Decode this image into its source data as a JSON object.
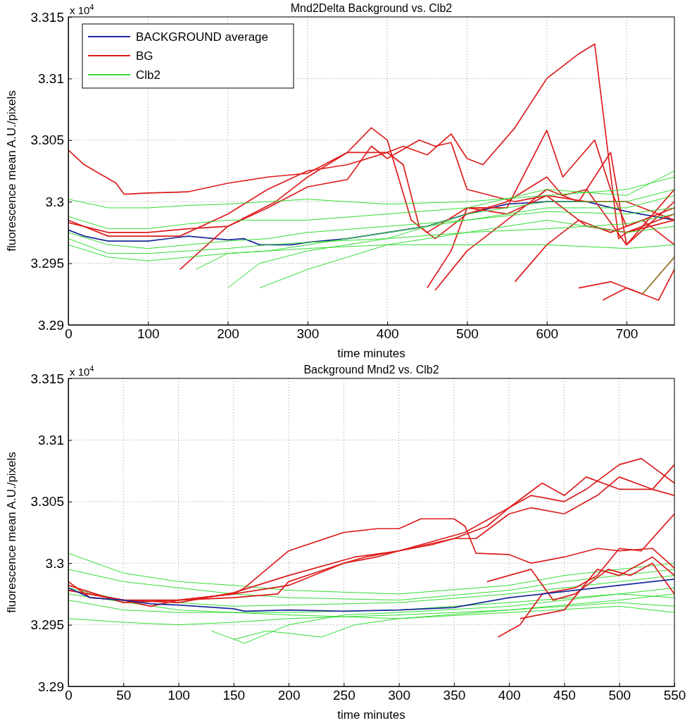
{
  "chart_data": [
    {
      "type": "line",
      "title": "Mnd2Delta Background vs. Clb2",
      "xlabel": "time minutes",
      "ylabel": "fluorescence mean A.U./pixels",
      "annotations": [
        "x 10$^{4}$"
      ],
      "xlim": [
        0,
        760
      ],
      "xticks": [
        0,
        100,
        200,
        300,
        400,
        500,
        600,
        700
      ],
      "ylim": [
        3.29,
        3.315
      ],
      "yticks": [
        3.29,
        3.295,
        3.3,
        3.305,
        3.31,
        3.315
      ],
      "grid": true,
      "legend": "top left",
      "marker": "none",
      "line_style": "solid",
      "series": [
        {
          "name": "BACKGROUND average",
          "color": "#1a2a9a",
          "x": [
            0,
            20,
            50,
            100,
            150,
            200,
            220,
            240,
            280,
            300,
            350,
            400,
            450,
            500,
            550,
            600,
            650,
            700,
            760
          ],
          "values": [
            3.2977,
            3.2972,
            3.2968,
            3.2968,
            3.2972,
            3.2969,
            3.297,
            3.2965,
            3.2965,
            3.2967,
            3.297,
            3.2975,
            3.298,
            3.299,
            3.2998,
            3.3,
            3.3,
            3.2992,
            3.2985
          ]
        },
        {
          "name": "BG",
          "color": "#dd1c1c",
          "x": [
            0,
            20,
            60,
            70,
            100,
            150,
            200,
            250,
            300,
            350,
            400,
            420,
            450,
            480,
            500,
            520,
            560,
            600,
            640,
            660,
            690,
            700,
            760
          ],
          "values": [
            3.3042,
            3.303,
            3.3015,
            3.3006,
            3.3007,
            3.3008,
            3.3015,
            3.302,
            3.3023,
            3.304,
            3.304,
            3.3045,
            3.3038,
            3.3055,
            3.3035,
            3.303,
            3.306,
            3.31,
            3.312,
            3.3128,
            3.297,
            3.2975,
            3.299
          ]
        },
        {
          "color": "#dd1c1c",
          "x": [
            0,
            50,
            100,
            150,
            200,
            260,
            300,
            350,
            380,
            400,
            430,
            450,
            500,
            550,
            600,
            650,
            700,
            760
          ],
          "values": [
            3.2983,
            3.2975,
            3.2975,
            3.2978,
            3.298,
            3.3,
            3.302,
            3.304,
            3.306,
            3.305,
            3.2985,
            3.2975,
            3.2995,
            3.299,
            3.3005,
            3.298,
            3.2975,
            3.2985
          ]
        },
        {
          "color": "#dd1c1c",
          "x": [
            0,
            50,
            100,
            140,
            200,
            250,
            300,
            350,
            400,
            420,
            440,
            460,
            500,
            550,
            600,
            620,
            650,
            700,
            760
          ],
          "values": [
            3.2985,
            3.2972,
            3.2972,
            3.2972,
            3.299,
            3.301,
            3.3025,
            3.303,
            3.304,
            3.303,
            3.298,
            3.297,
            3.299,
            3.3,
            3.302,
            3.3005,
            3.301,
            3.2965,
            3.3
          ]
        },
        {
          "color": "#dd1c1c",
          "x": [
            140,
            200,
            250,
            300,
            350,
            380,
            400,
            440,
            460,
            480,
            500,
            560,
            600,
            650,
            700,
            760
          ],
          "values": [
            3.2945,
            3.298,
            3.2995,
            3.3012,
            3.3018,
            3.3045,
            3.3035,
            3.305,
            3.3045,
            3.3048,
            3.301,
            3.3,
            3.3005,
            3.3,
            3.3,
            3.2985
          ]
        },
        {
          "color": "#dd1c1c",
          "x": [
            450,
            480,
            500,
            550,
            600,
            620,
            660,
            680,
            700,
            760
          ],
          "values": [
            3.293,
            3.296,
            3.2995,
            3.2995,
            3.3058,
            3.302,
            3.305,
            3.301,
            3.298,
            3.2995
          ]
        },
        {
          "color": "#dd1c1c",
          "x": [
            460,
            500,
            550,
            600,
            640,
            680,
            700,
            760
          ],
          "values": [
            3.2928,
            3.296,
            3.2985,
            3.301,
            3.3,
            3.304,
            3.2965,
            3.301
          ]
        },
        {
          "color": "#dd1c1c",
          "x": [
            560,
            600,
            640,
            680,
            720,
            760
          ],
          "values": [
            3.2935,
            3.2965,
            3.2985,
            3.2975,
            3.2985,
            3.2965
          ]
        },
        {
          "color": "#dd1c1c",
          "x": [
            640,
            680,
            720,
            760
          ],
          "values": [
            3.293,
            3.2935,
            3.2925,
            3.2955
          ]
        },
        {
          "color": "#dd1c1c",
          "x": [
            670,
            700,
            740,
            760
          ],
          "values": [
            3.292,
            3.293,
            3.292,
            3.2945
          ]
        },
        {
          "name": "Clb2",
          "color": "#33dd33",
          "x": [
            0,
            50,
            100,
            150,
            200,
            250,
            300,
            400,
            500,
            600,
            700,
            760
          ],
          "values": [
            3.3002,
            3.2995,
            3.2995,
            3.2997,
            3.2998,
            3.3,
            3.3002,
            3.2998,
            3.3,
            3.3005,
            3.301,
            3.302
          ]
        },
        {
          "color": "#33dd33",
          "x": [
            0,
            50,
            100,
            150,
            200,
            250,
            300,
            400,
            500,
            600,
            700,
            760
          ],
          "values": [
            3.2975,
            3.2965,
            3.2962,
            3.2965,
            3.2968,
            3.297,
            3.2975,
            3.298,
            3.2985,
            3.2995,
            3.2995,
            3.3005
          ]
        },
        {
          "color": "#33dd33",
          "x": [
            0,
            50,
            100,
            150,
            200,
            250,
            300,
            400,
            500,
            600,
            700,
            760
          ],
          "values": [
            3.297,
            3.2958,
            3.2958,
            3.296,
            3.2962,
            3.2965,
            3.2967,
            3.297,
            3.2975,
            3.2978,
            3.2982,
            3.299
          ]
        },
        {
          "color": "#33dd33",
          "x": [
            0,
            50,
            100,
            150,
            200,
            250,
            300,
            400,
            500,
            600,
            700,
            760
          ],
          "values": [
            3.2965,
            3.2955,
            3.2952,
            3.2955,
            3.2958,
            3.296,
            3.2962,
            3.2965,
            3.2965,
            3.2965,
            3.2962,
            3.2965
          ]
        },
        {
          "color": "#33dd33",
          "x": [
            160,
            200,
            250,
            300,
            400,
            500,
            600,
            700,
            760
          ],
          "values": [
            3.2945,
            3.2958,
            3.296,
            3.2965,
            3.2975,
            3.2985,
            3.2992,
            3.299,
            3.2995
          ]
        },
        {
          "color": "#33dd33",
          "x": [
            200,
            240,
            300,
            400,
            500,
            600,
            700,
            760
          ],
          "values": [
            3.293,
            3.295,
            3.296,
            3.297,
            3.299,
            3.3,
            3.3,
            3.301
          ]
        },
        {
          "color": "#33dd33",
          "x": [
            240,
            300,
            350,
            400,
            500,
            600,
            700,
            760
          ],
          "values": [
            3.293,
            3.2945,
            3.2955,
            3.2965,
            3.2975,
            3.2985,
            3.2975,
            3.298
          ]
        },
        {
          "color": "#33dd33",
          "x": [
            0,
            50,
            100,
            150,
            200,
            250,
            300,
            400,
            500,
            600,
            700,
            760
          ],
          "values": [
            3.2988,
            3.2978,
            3.2978,
            3.2982,
            3.2985,
            3.2985,
            3.2985,
            3.299,
            3.2995,
            3.301,
            3.3005,
            3.3025
          ]
        },
        {
          "color": "#33dd33",
          "x": [
            720,
            740,
            760
          ],
          "values": [
            3.2925,
            3.294,
            3.2955
          ]
        }
      ]
    },
    {
      "type": "line",
      "title": "Background Mnd2 vs. Clb2",
      "xlabel": "time minutes",
      "ylabel": "fluorescence mean A.U./pixels",
      "annotations": [
        "x 10$^{4}$"
      ],
      "xlim": [
        0,
        550
      ],
      "xticks": [
        0,
        50,
        100,
        150,
        200,
        250,
        300,
        350,
        400,
        450,
        500,
        550
      ],
      "ylim": [
        3.29,
        3.315
      ],
      "yticks": [
        3.29,
        3.295,
        3.3,
        3.305,
        3.31,
        3.315
      ],
      "grid": true,
      "marker": "none",
      "line_style": "solid",
      "series": [
        {
          "color": "#33dd33",
          "x": [
            0,
            50,
            100,
            150,
            200,
            300,
            400,
            450,
            500,
            550
          ],
          "values": [
            3.3008,
            3.2992,
            3.2985,
            3.2982,
            3.2978,
            3.2975,
            3.2982,
            3.299,
            3.2995,
            3.3
          ]
        },
        {
          "color": "#33dd33",
          "x": [
            0,
            50,
            100,
            150,
            200,
            300,
            400,
            450,
            500,
            550
          ],
          "values": [
            3.2995,
            3.2985,
            3.298,
            3.2975,
            3.2972,
            3.297,
            3.2978,
            3.2985,
            3.299,
            3.2995
          ]
        },
        {
          "color": "#33dd33",
          "x": [
            0,
            50,
            100,
            150,
            200,
            300,
            400,
            500,
            550
          ],
          "values": [
            3.298,
            3.297,
            3.2968,
            3.2965,
            3.2966,
            3.2968,
            3.2975,
            3.2985,
            3.299
          ]
        },
        {
          "color": "#33dd33",
          "x": [
            0,
            50,
            100,
            150,
            200,
            300,
            400,
            500,
            550
          ],
          "values": [
            3.297,
            3.2962,
            3.296,
            3.296,
            3.296,
            3.2962,
            3.2968,
            3.2975,
            3.298
          ]
        },
        {
          "color": "#33dd33",
          "x": [
            0,
            50,
            100,
            150,
            200,
            300,
            400,
            500,
            550
          ],
          "values": [
            3.2955,
            3.2952,
            3.295,
            3.2952,
            3.2955,
            3.2958,
            3.2962,
            3.2968,
            3.2965
          ]
        },
        {
          "color": "#33dd33",
          "x": [
            130,
            160,
            200,
            250,
            300,
            400,
            500,
            550
          ],
          "values": [
            3.2945,
            3.2935,
            3.295,
            3.2958,
            3.296,
            3.2965,
            3.2975,
            3.2972
          ]
        },
        {
          "color": "#33dd33",
          "x": [
            150,
            180,
            230,
            260,
            300,
            400,
            500,
            550
          ],
          "values": [
            3.2938,
            3.2945,
            3.294,
            3.295,
            3.2955,
            3.2962,
            3.297,
            3.2975
          ]
        },
        {
          "color": "#33dd33",
          "x": [
            0,
            100,
            200,
            300,
            400,
            500,
            550
          ],
          "values": [
            3.2975,
            3.2962,
            3.2958,
            3.2955,
            3.296,
            3.2965,
            3.296
          ]
        },
        {
          "color": "#dd1c1c",
          "x": [
            0,
            20,
            50,
            75,
            100,
            150,
            160,
            200,
            250,
            280,
            300,
            320,
            350,
            360,
            370,
            400,
            420,
            450,
            480,
            500,
            530,
            550
          ],
          "values": [
            3.2985,
            3.2972,
            3.297,
            3.2965,
            3.297,
            3.2975,
            3.298,
            3.301,
            3.3025,
            3.3028,
            3.3028,
            3.3036,
            3.3036,
            3.303,
            3.3008,
            3.3007,
            3.3,
            3.3005,
            3.3012,
            3.301,
            3.3012,
            3.2996
          ]
        },
        {
          "color": "#dd1c1c",
          "x": [
            0,
            50,
            100,
            150,
            190,
            200,
            250,
            280,
            300,
            350,
            370,
            400,
            420,
            450,
            480,
            500,
            530,
            550
          ],
          "values": [
            3.2978,
            3.297,
            3.297,
            3.2972,
            3.2975,
            3.2985,
            3.3,
            3.3005,
            3.301,
            3.302,
            3.302,
            3.304,
            3.3045,
            3.304,
            3.3055,
            3.307,
            3.306,
            3.308
          ]
        },
        {
          "color": "#dd1c1c",
          "x": [
            0,
            50,
            100,
            150,
            200,
            250,
            270,
            300,
            330,
            350,
            380,
            400,
            430,
            450,
            470,
            500,
            530,
            550
          ],
          "values": [
            3.2982,
            3.2968,
            3.297,
            3.2975,
            3.2982,
            3.3,
            3.3005,
            3.301,
            3.3015,
            3.302,
            3.303,
            3.3045,
            3.3065,
            3.3055,
            3.307,
            3.306,
            3.306,
            3.3055
          ]
        },
        {
          "color": "#dd1c1c",
          "x": [
            0,
            50,
            100,
            150,
            200,
            260,
            300,
            340,
            360,
            380,
            420,
            450,
            470,
            500,
            520,
            550
          ],
          "values": [
            3.2978,
            3.297,
            3.2968,
            3.2976,
            3.299,
            3.3005,
            3.301,
            3.302,
            3.3025,
            3.3035,
            3.3055,
            3.305,
            3.306,
            3.308,
            3.3085,
            3.3065
          ]
        },
        {
          "color": "#dd1c1c",
          "x": [
            390,
            410,
            430,
            460,
            480,
            500,
            520,
            550
          ],
          "values": [
            3.294,
            3.295,
            3.2975,
            3.298,
            3.299,
            3.3012,
            3.301,
            3.304
          ]
        },
        {
          "color": "#dd1c1c",
          "x": [
            410,
            450,
            480,
            500,
            530,
            550
          ],
          "values": [
            3.2955,
            3.2962,
            3.2995,
            3.299,
            3.3005,
            3.299
          ]
        },
        {
          "color": "#dd1c1c",
          "x": [
            380,
            420,
            440,
            460,
            490,
            510,
            530,
            550
          ],
          "values": [
            3.2985,
            3.2995,
            3.297,
            3.2975,
            3.2995,
            3.299,
            3.3,
            3.2975
          ]
        },
        {
          "color": "#1a2a9a",
          "x": [
            0,
            20,
            50,
            75,
            100,
            150,
            160,
            200,
            250,
            300,
            350,
            400,
            450,
            500,
            550
          ],
          "values": [
            3.298,
            3.2972,
            3.297,
            3.2967,
            3.2966,
            3.2963,
            3.2961,
            3.2962,
            3.2961,
            3.2962,
            3.2964,
            3.2972,
            3.2977,
            3.2982,
            3.2987
          ]
        }
      ]
    }
  ]
}
